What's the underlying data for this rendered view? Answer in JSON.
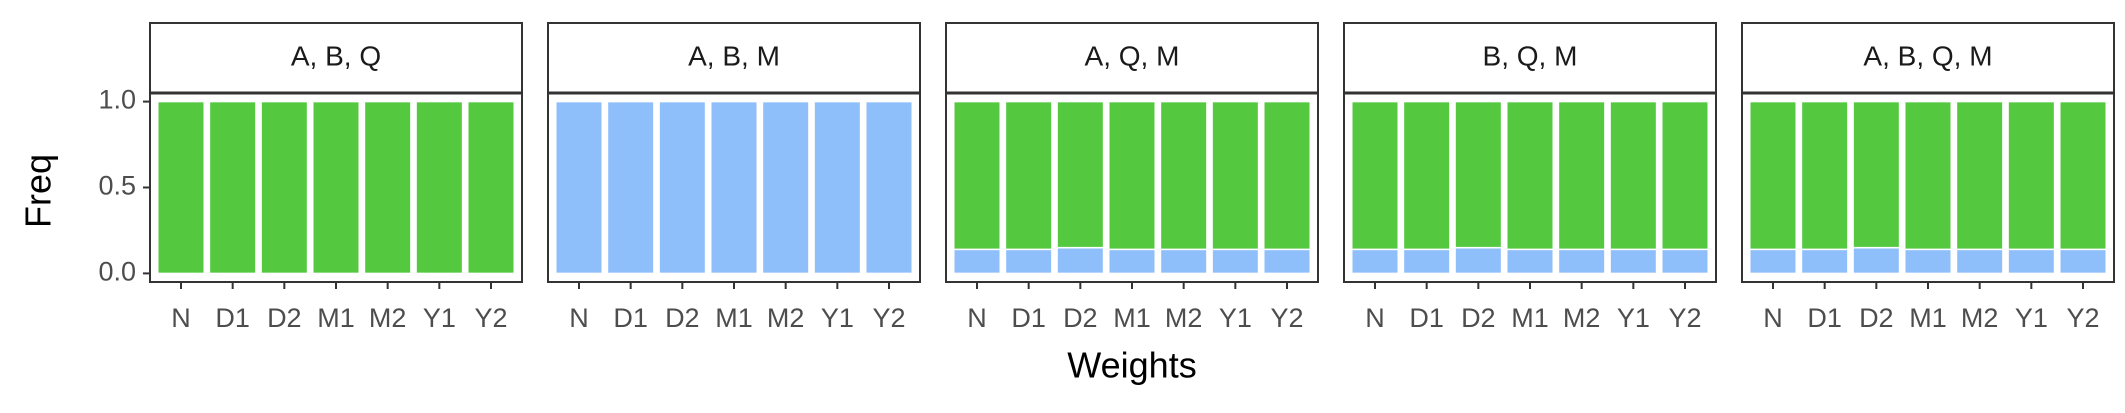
{
  "chart_data": {
    "type": "bar",
    "stacked": true,
    "xlabel": "Weights",
    "ylabel": "Freq",
    "categories": [
      "N",
      "D1",
      "D2",
      "M1",
      "M2",
      "Y1",
      "Y2"
    ],
    "ylim": [
      -0.05,
      1.05
    ],
    "yticks": [
      {
        "value": 0,
        "label": "0.0"
      },
      {
        "value": 0.5,
        "label": "0.5"
      },
      {
        "value": 1,
        "label": "1.0"
      }
    ],
    "panels": [
      {
        "title": "A, B, Q",
        "series": [
          {
            "color": "#8fbffb",
            "values": [
              0,
              0,
              0,
              0,
              0,
              0,
              0
            ]
          },
          {
            "color": "#54c940",
            "values": [
              1,
              1,
              1,
              1,
              1,
              1,
              1
            ]
          }
        ]
      },
      {
        "title": "A, B, M",
        "series": [
          {
            "color": "#8fbffb",
            "values": [
              1,
              1,
              1,
              1,
              1,
              1,
              1
            ]
          },
          {
            "color": "#54c940",
            "values": [
              0,
              0,
              0,
              0,
              0,
              0,
              0
            ]
          }
        ]
      },
      {
        "title": "A, Q, M",
        "series": [
          {
            "color": "#8fbffb",
            "values": [
              0.14,
              0.14,
              0.15,
              0.14,
              0.14,
              0.14,
              0.14
            ]
          },
          {
            "color": "#54c940",
            "values": [
              0.86,
              0.86,
              0.85,
              0.86,
              0.86,
              0.86,
              0.86
            ]
          }
        ]
      },
      {
        "title": "B, Q, M",
        "series": [
          {
            "color": "#8fbffb",
            "values": [
              0.14,
              0.14,
              0.15,
              0.14,
              0.14,
              0.14,
              0.14
            ]
          },
          {
            "color": "#54c940",
            "values": [
              0.86,
              0.86,
              0.85,
              0.86,
              0.86,
              0.86,
              0.86
            ]
          }
        ]
      },
      {
        "title": "A, B, Q, M",
        "series": [
          {
            "color": "#8fbffb",
            "values": [
              0.14,
              0.14,
              0.15,
              0.14,
              0.14,
              0.14,
              0.14
            ]
          },
          {
            "color": "#54c940",
            "values": [
              0.86,
              0.86,
              0.85,
              0.86,
              0.86,
              0.86,
              0.86
            ]
          }
        ]
      }
    ]
  }
}
